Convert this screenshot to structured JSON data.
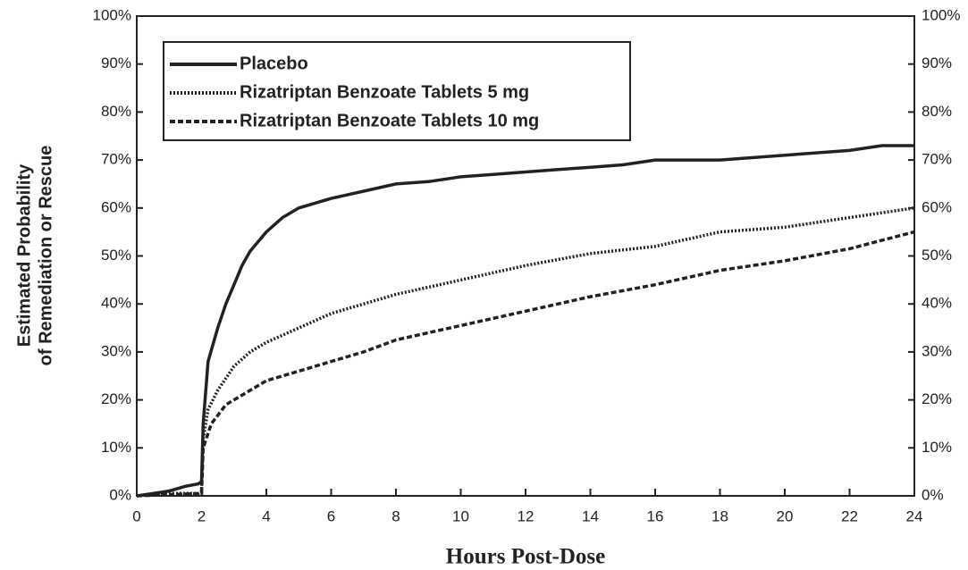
{
  "chart_data": {
    "type": "line",
    "xlabel": "Hours Post-Dose",
    "ylabel": [
      "Estimated Probability",
      "of Remediation or Rescue"
    ],
    "xlim": [
      0,
      24
    ],
    "xticks": [
      0,
      2,
      4,
      6,
      8,
      10,
      12,
      14,
      16,
      18,
      20,
      22,
      24
    ],
    "ylim": [
      0,
      100
    ],
    "yticks": [
      {
        "value": 0,
        "label": "0%"
      },
      {
        "value": 10,
        "label": "10%"
      },
      {
        "value": 20,
        "label": "20%"
      },
      {
        "value": 30,
        "label": "30%"
      },
      {
        "value": 40,
        "label": "40%"
      },
      {
        "value": 50,
        "label": "50%"
      },
      {
        "value": 60,
        "label": "60%"
      },
      {
        "value": 70,
        "label": "70%"
      },
      {
        "value": 80,
        "label": "80%"
      },
      {
        "value": 90,
        "label": "90%"
      },
      {
        "value": 100,
        "label": "100%"
      }
    ],
    "legend": "upper left",
    "series": [
      {
        "name": "Placebo",
        "color": "#222222",
        "style": "solid",
        "x": [
          0,
          0.5,
          1,
          1.5,
          1.9,
          2.0,
          2.05,
          2.2,
          2.5,
          2.75,
          3,
          3.25,
          3.5,
          4,
          4.5,
          5,
          5.5,
          6,
          7,
          8,
          9,
          10,
          11,
          12,
          13,
          14,
          15,
          16,
          18,
          20,
          22,
          23,
          24
        ],
        "values": [
          0,
          0.5,
          1,
          2,
          2.5,
          3,
          15,
          28,
          35,
          40,
          44,
          48,
          51,
          55,
          58,
          60,
          61,
          62,
          63.5,
          65,
          65.5,
          66.5,
          67,
          67.5,
          68,
          68.5,
          69,
          70,
          70,
          71,
          72,
          73,
          73
        ]
      },
      {
        "name": "Rizatriptan Benzoate Tablets 5 mg",
        "color": "#222222",
        "style": "dotted",
        "x": [
          0,
          1,
          1.9,
          2.0,
          2.05,
          2.2,
          2.5,
          3,
          3.5,
          4,
          5,
          6,
          7,
          8,
          10,
          12,
          14,
          16,
          18,
          20,
          22,
          24
        ],
        "values": [
          0,
          0.5,
          0.5,
          1,
          12,
          18,
          22,
          27,
          30,
          32,
          35,
          38,
          40,
          42,
          45,
          48,
          50.5,
          52,
          55,
          56,
          58,
          60
        ]
      },
      {
        "name": "Rizatriptan Benzoate Tablets 10 mg",
        "color": "#222222",
        "style": "dashed",
        "x": [
          0,
          2,
          2.05,
          2.3,
          2.75,
          3.5,
          4,
          5,
          6,
          7,
          8,
          10,
          12,
          14,
          16,
          18,
          20,
          22,
          24
        ],
        "values": [
          0,
          0.5,
          10,
          15,
          19,
          22,
          24,
          26,
          28,
          30,
          32.5,
          35.5,
          38.5,
          41.5,
          44,
          47,
          49,
          51.5,
          55
        ]
      }
    ]
  }
}
